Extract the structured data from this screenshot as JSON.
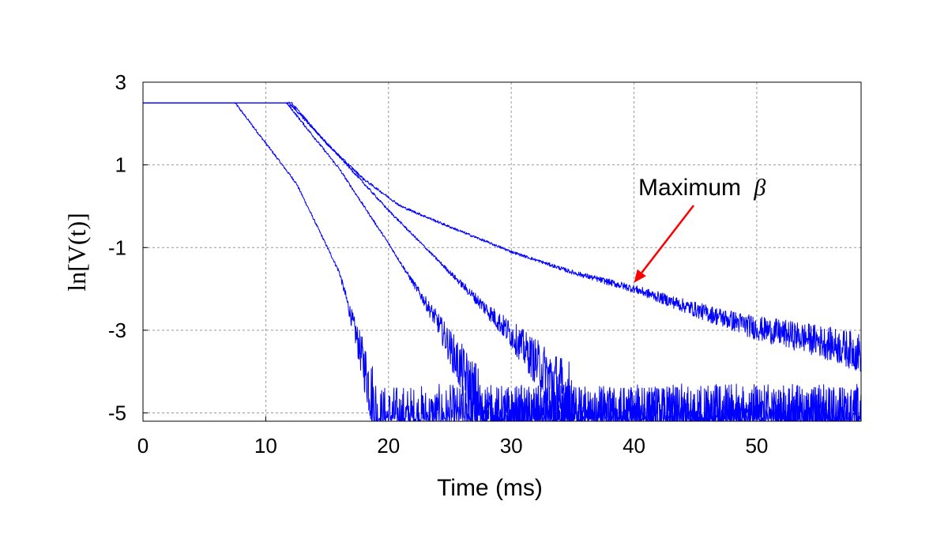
{
  "chart_data": {
    "type": "line",
    "title": "",
    "xlabel": "Time (ms)",
    "ylabel": "ln[V(t)]",
    "xlim": [
      0,
      58.5
    ],
    "ylim": [
      -5.2,
      3
    ],
    "x_ticks": [
      "0",
      "10",
      "20",
      "30",
      "40",
      "50"
    ],
    "y_ticks": [
      "3",
      "1",
      "-1",
      "-3",
      "-5"
    ],
    "grid": true,
    "line_color": "#0000ff",
    "series": [
      {
        "saturation_end_ms": 7.5,
        "decay": [
          [
            7.5,
            2.5
          ],
          [
            12.5,
            0.55
          ],
          [
            16.0,
            -1.6
          ],
          [
            18.5,
            -4.4
          ],
          [
            19.0,
            -5.2
          ]
        ]
      },
      {
        "saturation_end_ms": 11.7,
        "decay": [
          [
            11.7,
            2.5
          ],
          [
            16.0,
            0.9
          ],
          [
            20.0,
            -0.9
          ],
          [
            24.0,
            -2.8
          ],
          [
            26.0,
            -4.0
          ],
          [
            27.5,
            -5.0
          ]
        ]
      },
      {
        "saturation_end_ms": 11.9,
        "decay": [
          [
            11.9,
            2.5
          ],
          [
            16.0,
            1.2
          ],
          [
            20.0,
            -0.1
          ],
          [
            25.0,
            -1.6
          ],
          [
            30.0,
            -3.1
          ],
          [
            33.0,
            -4.1
          ],
          [
            35.0,
            -4.8
          ]
        ]
      },
      {
        "saturation_end_ms": 12.1,
        "decay": [
          [
            12.1,
            2.5
          ],
          [
            15.0,
            1.5
          ],
          [
            18.0,
            0.65
          ],
          [
            21.0,
            0.0
          ],
          [
            25.0,
            -0.5
          ],
          [
            30.0,
            -1.1
          ],
          [
            35.0,
            -1.6
          ],
          [
            40.0,
            -2.0
          ],
          [
            45.0,
            -2.5
          ],
          [
            50.0,
            -2.95
          ],
          [
            55.0,
            -3.25
          ],
          [
            58.5,
            -3.55
          ]
        ]
      }
    ],
    "annotation": {
      "text": "Maximum",
      "symbol": "β",
      "arrow_color": "#ff0000",
      "points_to": [
        40.0,
        -1.85
      ]
    }
  }
}
